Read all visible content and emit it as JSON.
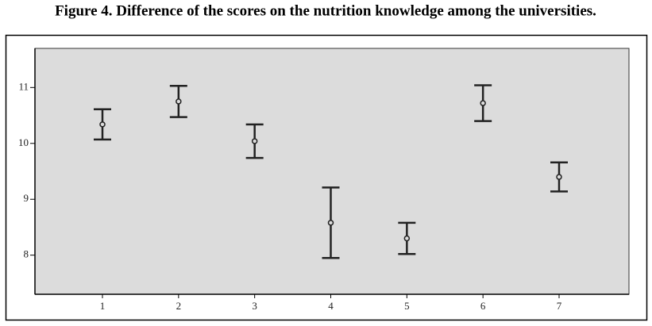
{
  "chart_data": {
    "type": "errorbar",
    "title": "Figure 4. Difference of the scores on the nutrition knowledge among the universities.",
    "categories": [
      "1",
      "2",
      "3",
      "4",
      "5",
      "6",
      "7"
    ],
    "values": [
      10.34,
      10.75,
      10.04,
      8.58,
      8.3,
      10.72,
      9.4
    ],
    "errors": [
      0.27,
      0.28,
      0.3,
      0.63,
      0.28,
      0.32,
      0.26
    ],
    "color": "#222222",
    "ylim": [
      7.3,
      11.7
    ],
    "yticks": [
      8,
      9,
      10,
      11
    ]
  }
}
